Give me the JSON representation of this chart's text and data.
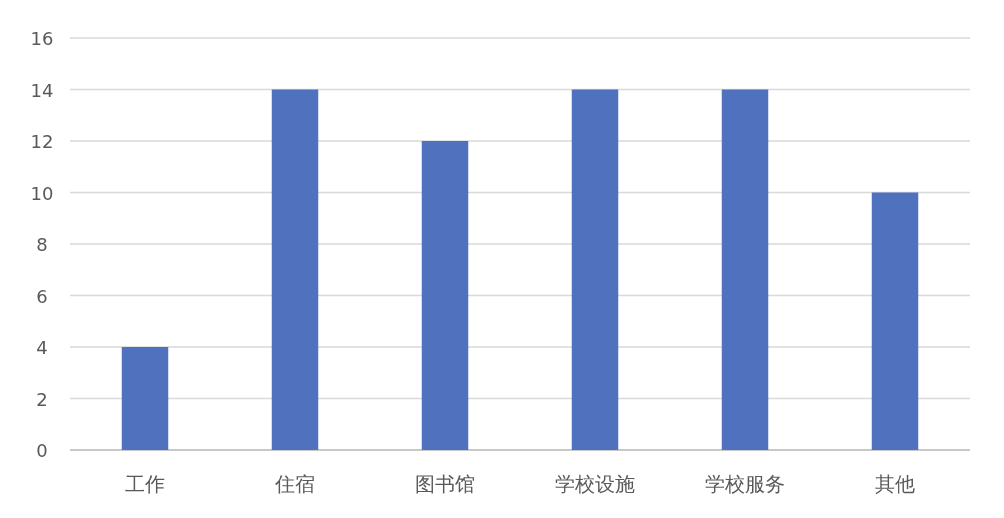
{
  "chart_data": {
    "type": "bar",
    "categories": [
      "工作",
      "住宿",
      "图书馆",
      "学校设施",
      "学校服务",
      "其他"
    ],
    "values": [
      4,
      14,
      12,
      14,
      14,
      10
    ],
    "color": "#4f71be",
    "ylim": [
      0,
      16
    ],
    "yticks": [
      0,
      2,
      4,
      6,
      8,
      10,
      12,
      14,
      16
    ],
    "grid": "y"
  }
}
